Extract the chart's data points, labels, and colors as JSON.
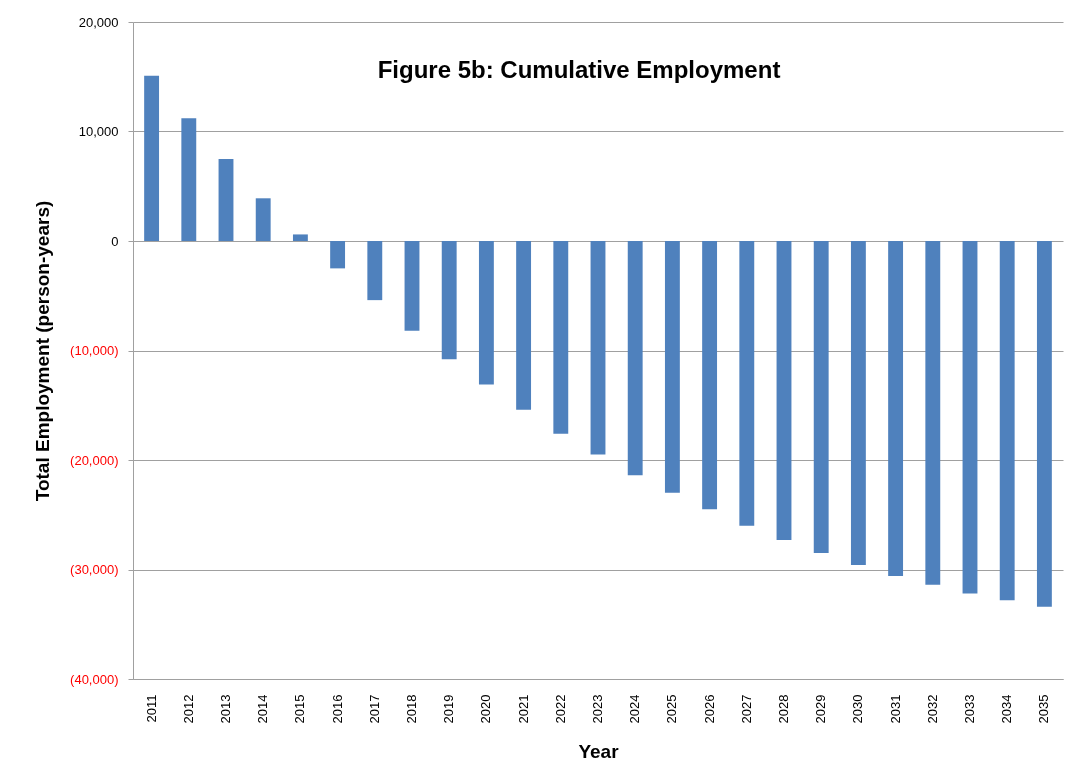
{
  "chart_data": {
    "type": "bar",
    "title": "Figure 5b: Cumulative Employment",
    "xlabel": "Year",
    "ylabel": "Total Employment (person-years)",
    "categories": [
      "2011",
      "2012",
      "2013",
      "2014",
      "2015",
      "2016",
      "2017",
      "2018",
      "2019",
      "2020",
      "2021",
      "2022",
      "2023",
      "2024",
      "2025",
      "2026",
      "2027",
      "2028",
      "2029",
      "2030",
      "2031",
      "2032",
      "2033",
      "2034",
      "2035"
    ],
    "values": [
      15100,
      11200,
      7500,
      3900,
      600,
      -2500,
      -5400,
      -8200,
      -10800,
      -13100,
      -15400,
      -17600,
      -19500,
      -21400,
      -23000,
      -24500,
      -26000,
      -27300,
      -28500,
      -29600,
      -30600,
      -31400,
      -32200,
      -32800,
      -33400
    ],
    "color": "#4f81bd",
    "ylim": [
      -40000,
      20000
    ],
    "yticks": [
      {
        "value": -40000,
        "label": "(40,000)"
      },
      {
        "value": -30000,
        "label": "(30,000)"
      },
      {
        "value": -20000,
        "label": "(20,000)"
      },
      {
        "value": -10000,
        "label": "(10,000)"
      },
      0,
      {
        "value": 10000,
        "label": "10,000"
      },
      {
        "value": 20000,
        "label": "20,000"
      }
    ],
    "grid": "y"
  }
}
